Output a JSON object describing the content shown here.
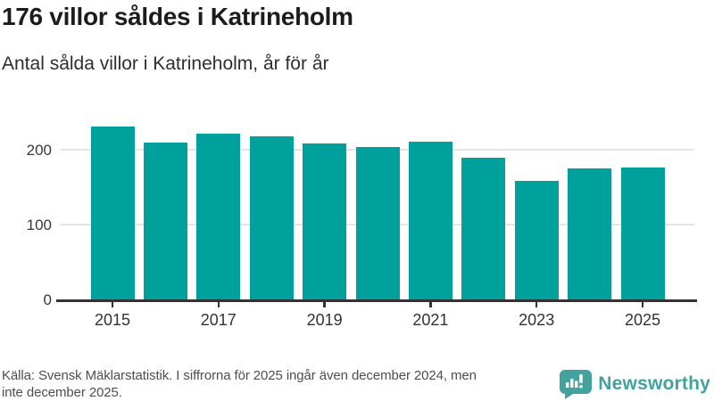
{
  "header": {
    "title": "176 villor såldes i Katrineholm",
    "subtitle": "Antal sålda villor i Katrineholm, år för år"
  },
  "chart_data": {
    "type": "bar",
    "title": "176 villor såldes i Katrineholm",
    "subtitle": "Antal sålda villor i Katrineholm, år för år",
    "categories": [
      2015,
      2016,
      2017,
      2018,
      2019,
      2020,
      2021,
      2022,
      2023,
      2024,
      2025
    ],
    "values": [
      231,
      210,
      222,
      218,
      208,
      203,
      211,
      189,
      158,
      175,
      176
    ],
    "xlabel": "",
    "ylabel": "",
    "xticks": [
      2015,
      2017,
      2019,
      2021,
      2023,
      2025
    ],
    "yticks": [
      0,
      100,
      200
    ],
    "ylim": [
      0,
      240
    ],
    "grid": "horizontal",
    "legend": "none",
    "bar_color": "#00a19c"
  },
  "footer": {
    "source_line1": "Källa: Svensk Mäklarstatistik. I siffrorna för 2025 ingår även december 2024, men",
    "source_line2": "inte december 2025.",
    "logo_text": "Newsworthy"
  },
  "icons": {
    "logo_icon": "newsworthy-speech-bubble-bar-chart-icon"
  },
  "colors": {
    "bar": "#00a19c",
    "logo": "#41a29e",
    "axis": "#333333",
    "gridline": "#e4e4e4",
    "title_text": "#1c1c1c",
    "subtitle_text": "#2e2e2e",
    "footer_text": "#4e4e4e",
    "background": "#ffffff"
  }
}
